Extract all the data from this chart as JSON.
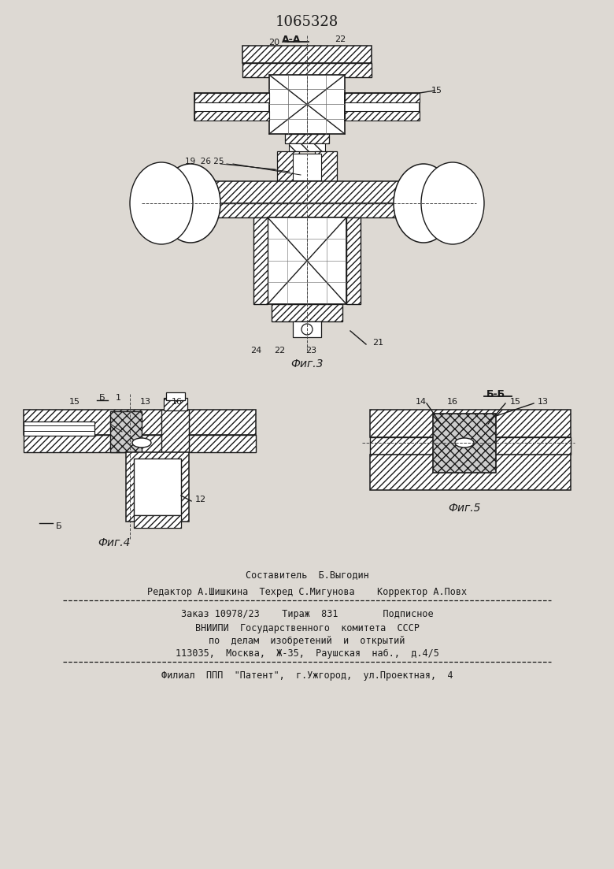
{
  "background_color": "#ddd9d3",
  "page_width": 7.8,
  "page_height": 11.03,
  "dpi": 100,
  "patent_number": "1065328",
  "fig3_label": "Фиг.3",
  "fig4_label": "Фиг.4",
  "fig5_label": "Фиг.5",
  "footer_line1": "Составитель  Б.Выгодин",
  "footer_line2": "Редактор А.Шишкина  Техред С.Мигунова    Корректор А.Повх",
  "footer_line3": "Заказ 10978/23    Тираж  831        Подписное",
  "footer_line4": "ВНИИПИ  Государственного  комитета  СССР",
  "footer_line5": "по  делам  изобретений  и  открытий",
  "footer_line6": "113035,  Москва,  Ж-35,  Раушская  наб.,  д.4/5",
  "footer_line7": "Филиал  ППП  \"Патент\",  г.Ужгород,  ул.Проектная,  4",
  "line_color": "#1a1a1a"
}
